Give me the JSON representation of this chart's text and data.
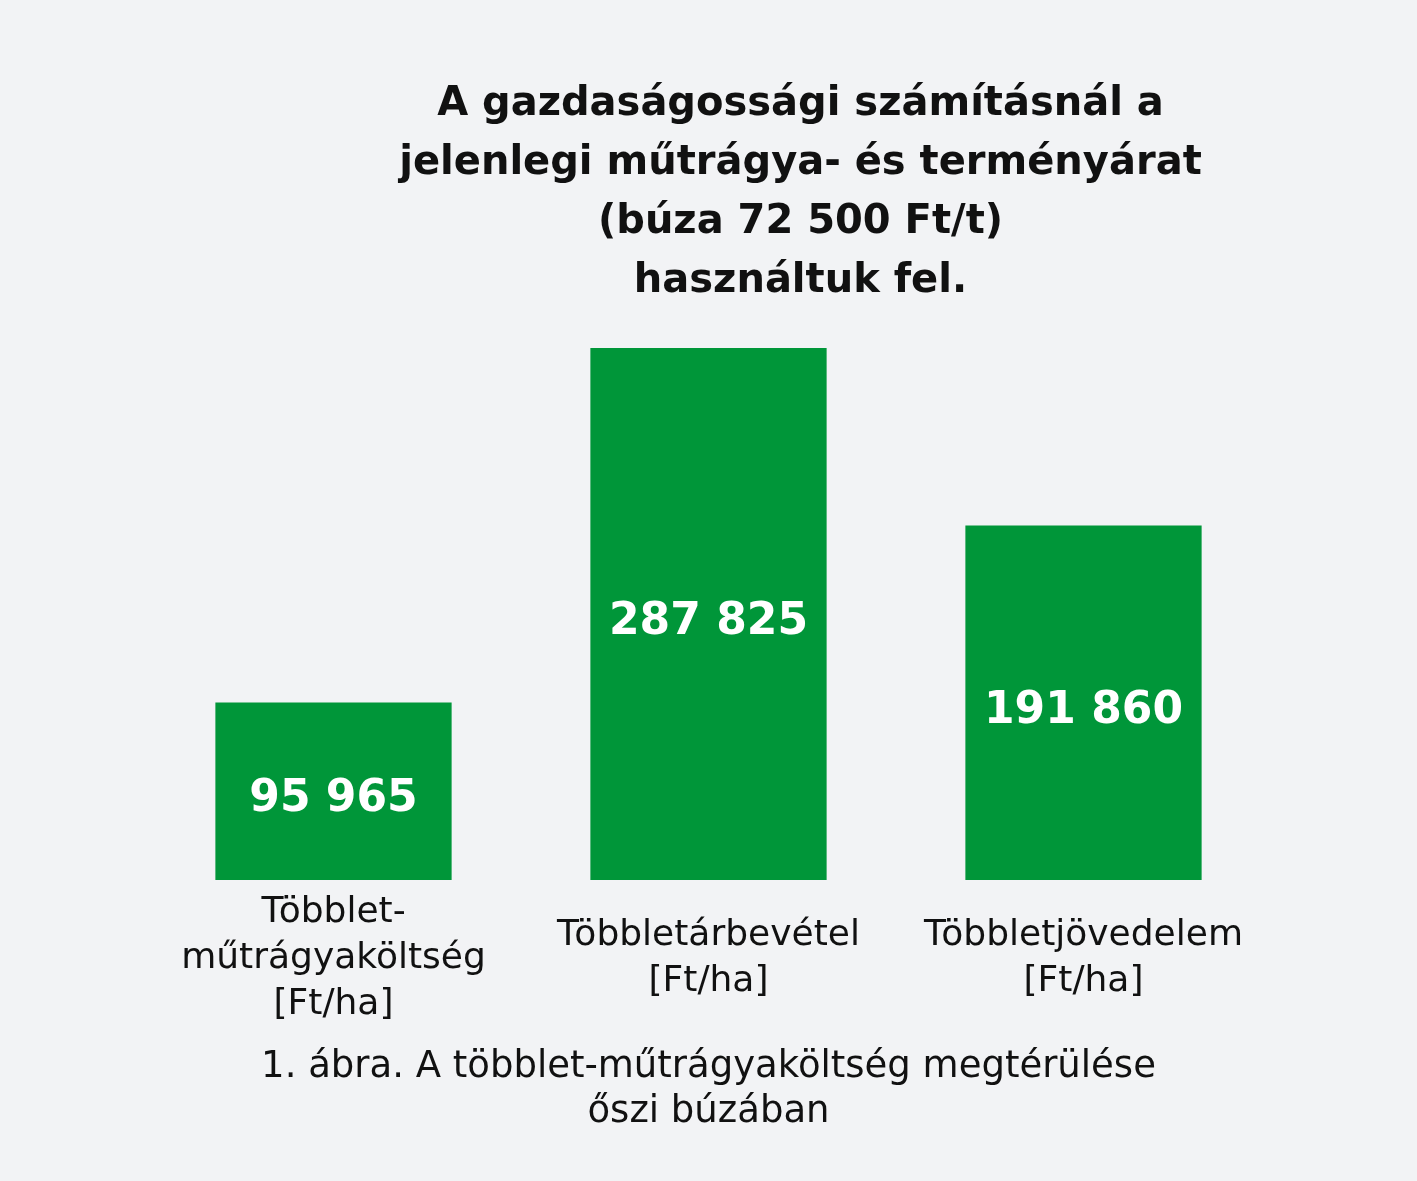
{
  "chart_data": {
    "type": "bar",
    "title": "A gazdaságossági számításnál a\njelenlegi műtrágya- és terményárat\n(búza 72 500 Ft/t)\nhasználtuk fel.",
    "categories": [
      "Többlet-\nműtrágyaköltség\n[Ft/ha]",
      "Többletárbevétel\n[Ft/ha]",
      "Többletjövedelem\n[Ft/ha]"
    ],
    "values": [
      95965,
      287825,
      191860
    ],
    "color": "#009639",
    "value_labels": [
      "95 965",
      "287 825",
      "191 860"
    ],
    "tick_labels": "x",
    "annotations": [
      "1. ábra. A többlet-műtrágyaköltség megtérülése\nőszi búzában"
    ]
  }
}
